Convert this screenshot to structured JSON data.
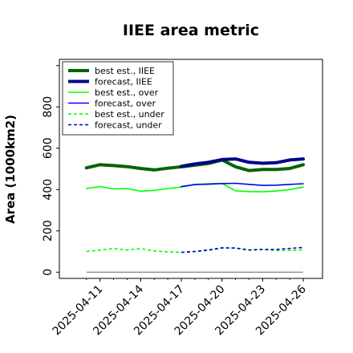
{
  "chart_data": {
    "type": "line",
    "title": "IIEE area metric",
    "xlabel": "",
    "ylabel": "Area (1000km2)",
    "xlim": [
      "2025-04-08",
      "2025-04-26"
    ],
    "ylim": [
      -30,
      1030
    ],
    "yticks": [
      0,
      200,
      400,
      600,
      800
    ],
    "xticks": [
      "2025-04-11",
      "2025-04-14",
      "2025-04-17",
      "2025-04-20",
      "2025-04-23",
      "2025-04-26"
    ],
    "highlight_tick": "2025-04-17",
    "highlight_color": "#228b22",
    "grid": false,
    "legend_placement": "top-left",
    "x": [
      "2025-04-10",
      "2025-04-11",
      "2025-04-12",
      "2025-04-13",
      "2025-04-14",
      "2025-04-15",
      "2025-04-16",
      "2025-04-17",
      "2025-04-18",
      "2025-04-19",
      "2025-04-20",
      "2025-04-21",
      "2025-04-22",
      "2025-04-23",
      "2025-04-24",
      "2025-04-25",
      "2025-04-26"
    ],
    "series": [
      {
        "name": "best est., IIEE",
        "color": "#006400",
        "dash": "solid",
        "weight": "thick",
        "values": [
          505,
          520,
          516,
          511,
          502,
          495,
          503,
          510,
          518,
          526,
          543,
          510,
          492,
          497,
          497,
          502,
          520
        ]
      },
      {
        "name": "forecast, IIEE",
        "color": "#00008b",
        "dash": "solid",
        "weight": "thick",
        "values": [
          null,
          null,
          null,
          null,
          null,
          null,
          null,
          512,
          524,
          532,
          545,
          548,
          532,
          527,
          530,
          543,
          548
        ]
      },
      {
        "name": "best est., over",
        "color": "#00ff00",
        "dash": "solid",
        "weight": "thin",
        "values": [
          405,
          414,
          403,
          405,
          392,
          396,
          405,
          412,
          425,
          428,
          430,
          394,
          390,
          389,
          393,
          400,
          412
        ]
      },
      {
        "name": "forecast, over",
        "color": "#0000ff",
        "dash": "solid",
        "weight": "thin",
        "values": [
          null,
          null,
          null,
          null,
          null,
          null,
          null,
          414,
          424,
          426,
          429,
          430,
          425,
          420,
          421,
          425,
          428
        ]
      },
      {
        "name": "best est., under",
        "color": "#00ff00",
        "dash": "dashed",
        "weight": "thin",
        "values": [
          100,
          107,
          115,
          107,
          114,
          103,
          98,
          96,
          100,
          105,
          117,
          116,
          106,
          110,
          105,
          105,
          108
        ]
      },
      {
        "name": "forecast, under",
        "color": "#0000cd",
        "dash": "dashed",
        "weight": "thin",
        "values": [
          null,
          null,
          null,
          null,
          null,
          null,
          null,
          96,
          100,
          108,
          118,
          117,
          108,
          110,
          110,
          115,
          120
        ]
      }
    ],
    "zero_line": {
      "color": "#808080",
      "value": 0
    }
  }
}
